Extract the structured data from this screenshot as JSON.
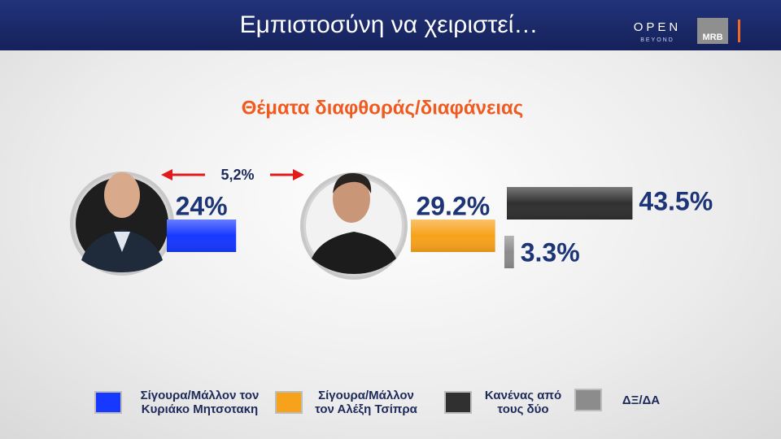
{
  "chart_data": {
    "type": "bar",
    "title": "Εμπιστοσύνη να χειριστεί…",
    "subtitle": "Θέματα διαφθοράς/διαφάνειας",
    "annotation": "5,2%",
    "logos": {
      "open": "OPEN",
      "beyond": "BEYOND",
      "mrb": "MRB"
    },
    "series": [
      {
        "name": "Σίγουρα/Μάλλον τον Κυριάκο Μητσοτακη",
        "color": "#1738ff",
        "values": [
          24
        ],
        "value_labels": [
          "24%"
        ]
      },
      {
        "name": "Σίγουρα/Μάλλον τον Αλέξη Τσίπρα",
        "color": "#f7a21b",
        "values": [
          29.2
        ],
        "value_labels": [
          "29.2%"
        ]
      },
      {
        "name": "Κανένας από τους δύο",
        "color": "#303030",
        "values": [
          43.5
        ],
        "value_labels": [
          "43.5%"
        ]
      },
      {
        "name": "ΔΞ/ΔΑ",
        "color": "#8c8c8c",
        "values": [
          3.3
        ],
        "value_labels": [
          "3.3%"
        ]
      }
    ]
  }
}
